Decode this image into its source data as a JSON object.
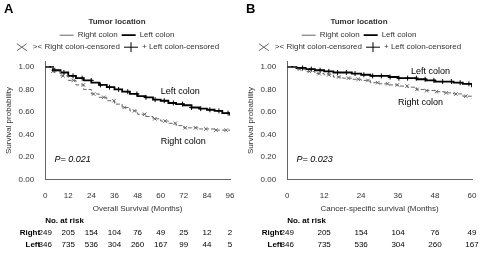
{
  "chart_data": [
    {
      "type": "step",
      "title": "A",
      "xlabel": "Overall Survival (Months)",
      "ylabel": "Survival probability",
      "xlim": [
        0,
        96
      ],
      "ylim": [
        0.0,
        1.05
      ],
      "xticks": [
        0,
        12,
        24,
        36,
        48,
        60,
        72,
        84,
        96
      ],
      "yticks": [
        {
          "value": 0.0,
          "label": "0.00"
        },
        {
          "value": 0.2,
          "label": "0.20"
        },
        {
          "value": 0.4,
          "label": "0.40"
        },
        {
          "value": 0.6,
          "label": "0.60"
        },
        {
          "value": 0.8,
          "label": "0.80"
        },
        {
          "value": 1.0,
          "label": "1.00"
        }
      ],
      "grid": false,
      "legend": "top",
      "legend_title": "Tumor location",
      "series": [
        {
          "name": "Right colon",
          "color": "#666666",
          "line_style": "dashed",
          "x": [
            0,
            4,
            8,
            12,
            16,
            20,
            24,
            28,
            32,
            36,
            40,
            44,
            48,
            52,
            56,
            60,
            64,
            68,
            72,
            76,
            80,
            84,
            88,
            92,
            96
          ],
          "values": [
            1.0,
            0.96,
            0.92,
            0.88,
            0.84,
            0.8,
            0.76,
            0.73,
            0.7,
            0.67,
            0.64,
            0.61,
            0.58,
            0.56,
            0.54,
            0.52,
            0.5,
            0.48,
            0.46,
            0.46,
            0.45,
            0.45,
            0.44,
            0.44,
            0.44
          ]
        },
        {
          "name": "Left colon",
          "color": "#000000",
          "line_style": "solid",
          "x": [
            0,
            4,
            8,
            12,
            16,
            20,
            24,
            28,
            32,
            36,
            40,
            44,
            48,
            52,
            56,
            60,
            64,
            68,
            72,
            76,
            80,
            84,
            88,
            92,
            96
          ],
          "values": [
            1.0,
            0.97,
            0.95,
            0.92,
            0.9,
            0.88,
            0.86,
            0.84,
            0.82,
            0.8,
            0.78,
            0.76,
            0.74,
            0.73,
            0.71,
            0.7,
            0.68,
            0.67,
            0.66,
            0.64,
            0.63,
            0.62,
            0.61,
            0.59,
            0.57
          ]
        },
        {
          "name": ">< Right colon-censored",
          "color": "#666666",
          "type": "scatter",
          "marker": "x",
          "x": [
            4,
            9.2941,
            14.5882,
            19.8824,
            25.1765,
            30.4706,
            35.7647,
            41.0588,
            46.3529,
            51.6471,
            56.9412,
            62.2353,
            67.5294,
            72.8235,
            78.1176,
            83.4118,
            88.7059,
            94
          ],
          "values": [
            0.96,
            0.92,
            0.88,
            0.84,
            0.76,
            0.73,
            0.7,
            0.64,
            0.61,
            0.58,
            0.54,
            0.52,
            0.5,
            0.46,
            0.46,
            0.45,
            0.44,
            0.44
          ]
        },
        {
          "name": "+ Left colon-censored",
          "color": "#000000",
          "type": "scatter",
          "marker": "+",
          "x": [
            5,
            9.7368,
            14.4737,
            19.2105,
            23.9474,
            28.6842,
            33.4211,
            38.1579,
            42.8947,
            47.6316,
            52.3684,
            57.1053,
            61.8421,
            66.5789,
            71.3158,
            76.0526,
            80.7895,
            85.5263,
            90.2632,
            95
          ],
          "values": [
            0.97,
            0.95,
            0.92,
            0.9,
            0.88,
            0.84,
            0.82,
            0.8,
            0.78,
            0.76,
            0.73,
            0.71,
            0.7,
            0.68,
            0.67,
            0.64,
            0.63,
            0.62,
            0.61,
            0.59
          ]
        }
      ],
      "annotations": [
        "P= 0.021",
        "Left colon",
        "Right colon"
      ],
      "at_risk": {
        "title": "No. at risk",
        "x": [
          0,
          12,
          24,
          36,
          48,
          60,
          72,
          84,
          96
        ],
        "rows": [
          {
            "label": "Right",
            "values": [
              249,
              205,
              154,
              104,
              76,
              49,
              25,
              12,
              2
            ]
          },
          {
            "label": "Left",
            "values": [
              846,
              735,
              536,
              304,
              260,
              167,
              99,
              44,
              5
            ]
          }
        ]
      }
    },
    {
      "type": "step",
      "title": "B",
      "xlabel": "Cancer-specific survival (Months)",
      "ylabel": "Survival probability",
      "xlim": [
        0,
        60
      ],
      "ylim": [
        0.0,
        1.05
      ],
      "xticks": [
        0,
        12,
        24,
        36,
        48,
        60
      ],
      "yticks": [
        {
          "value": 0.0,
          "label": "0.00"
        },
        {
          "value": 0.2,
          "label": "0.20"
        },
        {
          "value": 0.4,
          "label": "0.40"
        },
        {
          "value": 0.6,
          "label": "0.60"
        },
        {
          "value": 0.8,
          "label": "0.80"
        },
        {
          "value": 1.0,
          "label": "1.00"
        }
      ],
      "grid": false,
      "legend": "top",
      "legend_title": "Tumor location",
      "series": [
        {
          "name": "Right colon",
          "color": "#666666",
          "line_style": "dashed",
          "x": [
            0,
            3,
            6,
            9,
            12,
            15,
            18,
            21,
            24,
            27,
            30,
            33,
            36,
            39,
            42,
            45,
            48,
            51,
            54,
            57,
            60
          ],
          "values": [
            1.0,
            0.98,
            0.96,
            0.94,
            0.93,
            0.91,
            0.9,
            0.89,
            0.88,
            0.86,
            0.85,
            0.84,
            0.83,
            0.82,
            0.8,
            0.79,
            0.78,
            0.77,
            0.76,
            0.74,
            0.72
          ]
        },
        {
          "name": "Left colon",
          "color": "#000000",
          "line_style": "solid",
          "x": [
            0,
            3,
            6,
            9,
            12,
            15,
            18,
            21,
            24,
            27,
            30,
            33,
            36,
            39,
            42,
            45,
            48,
            51,
            54,
            57,
            60
          ],
          "values": [
            1.0,
            0.99,
            0.98,
            0.97,
            0.96,
            0.95,
            0.95,
            0.94,
            0.93,
            0.92,
            0.92,
            0.91,
            0.9,
            0.9,
            0.89,
            0.88,
            0.87,
            0.87,
            0.86,
            0.85,
            0.82
          ]
        },
        {
          "name": ">< Right colon-censored",
          "color": "#666666",
          "type": "scatter",
          "marker": "x",
          "x": [
            4,
            7.1765,
            10.3529,
            13.5294,
            16.7059,
            19.8824,
            23.0588,
            26.2353,
            29.4118,
            32.5882,
            35.7647,
            38.9412,
            42.1176,
            45.2941,
            48.4706,
            51.6471,
            54.8235,
            58
          ],
          "values": [
            0.98,
            0.96,
            0.94,
            0.93,
            0.91,
            0.9,
            0.89,
            0.88,
            0.86,
            0.85,
            0.84,
            0.83,
            0.8,
            0.79,
            0.78,
            0.77,
            0.76,
            0.74
          ]
        },
        {
          "name": "+ Left colon-censored",
          "color": "#000000",
          "type": "scatter",
          "marker": "+",
          "x": [
            5,
            7.8421,
            10.6842,
            13.5263,
            16.3684,
            19.2105,
            22.0526,
            24.8947,
            27.7368,
            30.5789,
            33.4211,
            36.2632,
            39.1053,
            41.9474,
            44.7895,
            47.6316,
            50.4737,
            53.3158,
            56.1579,
            59
          ],
          "values": [
            0.99,
            0.98,
            0.97,
            0.96,
            0.95,
            0.95,
            0.94,
            0.93,
            0.92,
            0.92,
            0.91,
            0.9,
            0.9,
            0.9,
            0.89,
            0.88,
            0.87,
            0.87,
            0.86,
            0.85
          ]
        }
      ],
      "annotations": [
        "P= 0.023",
        "Left colon",
        "Right colon"
      ],
      "at_risk": {
        "title": "No. at risk",
        "x": [
          0,
          12,
          24,
          36,
          48,
          60
        ],
        "rows": [
          {
            "label": "Right",
            "values": [
              249,
              205,
              154,
              104,
              76,
              49
            ]
          },
          {
            "label": "Left",
            "values": [
              846,
              735,
              536,
              304,
              260,
              167
            ]
          }
        ]
      }
    }
  ]
}
